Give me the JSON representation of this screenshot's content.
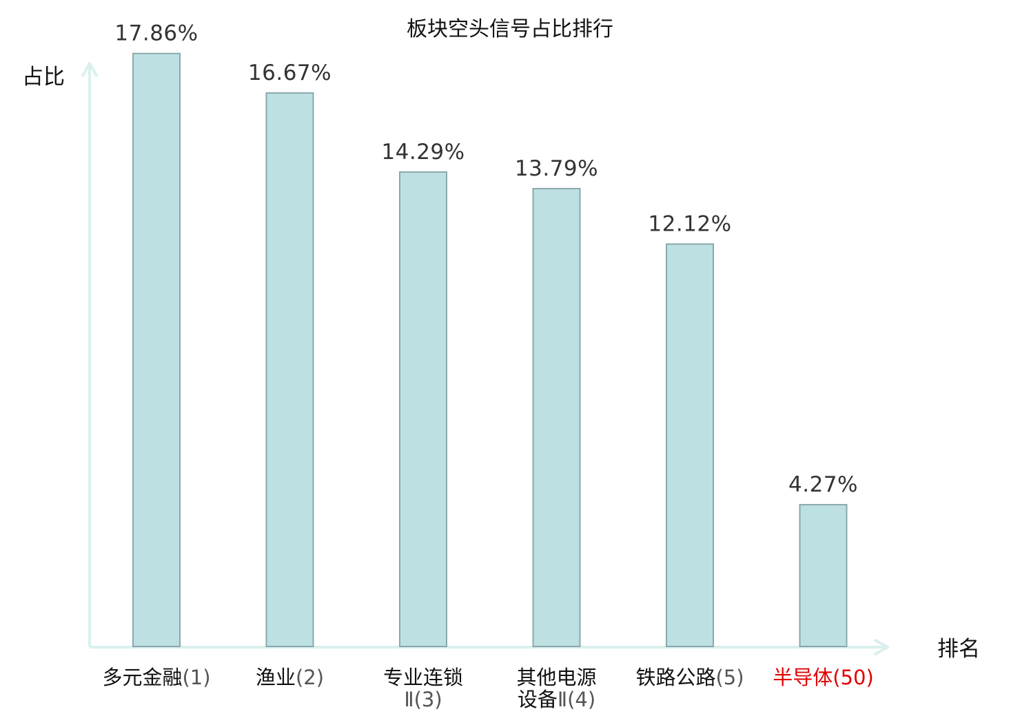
{
  "chart_data": {
    "type": "bar",
    "title": "板块空头信号占比排行",
    "ylabel": "占比",
    "xlabel": "排名",
    "ylim": [
      0,
      18.6
    ],
    "grid": false,
    "legend": "none",
    "categories": [
      {
        "lines": [
          {
            "name": "多元金融",
            "rank": "(1)"
          }
        ],
        "highlight": false
      },
      {
        "lines": [
          {
            "name": "渔业",
            "rank": "(2)"
          }
        ],
        "highlight": false
      },
      {
        "lines": [
          {
            "name": "专业连锁",
            "rank": ""
          },
          {
            "name": "",
            "rank": "Ⅱ(3)"
          }
        ],
        "highlight": false
      },
      {
        "lines": [
          {
            "name": "其他电源",
            "rank": ""
          },
          {
            "name": "设备",
            "rank": "Ⅱ(4)"
          }
        ],
        "highlight": false
      },
      {
        "lines": [
          {
            "name": "铁路公路",
            "rank": "(5)"
          }
        ],
        "highlight": false
      },
      {
        "lines": [
          {
            "name": "半导体",
            "rank": "(50)"
          }
        ],
        "highlight": true
      }
    ],
    "values": [
      17.86,
      16.67,
      14.29,
      13.79,
      12.12,
      4.27
    ],
    "value_labels": [
      "17.86%",
      "16.67%",
      "14.29%",
      "13.79%",
      "12.12%",
      "4.27%"
    ],
    "colors": {
      "bar_fill": "#bde0e3",
      "bar_stroke": "#8aa8aa",
      "axis": "#d9f0ee",
      "highlight_text": "#e00000"
    }
  }
}
